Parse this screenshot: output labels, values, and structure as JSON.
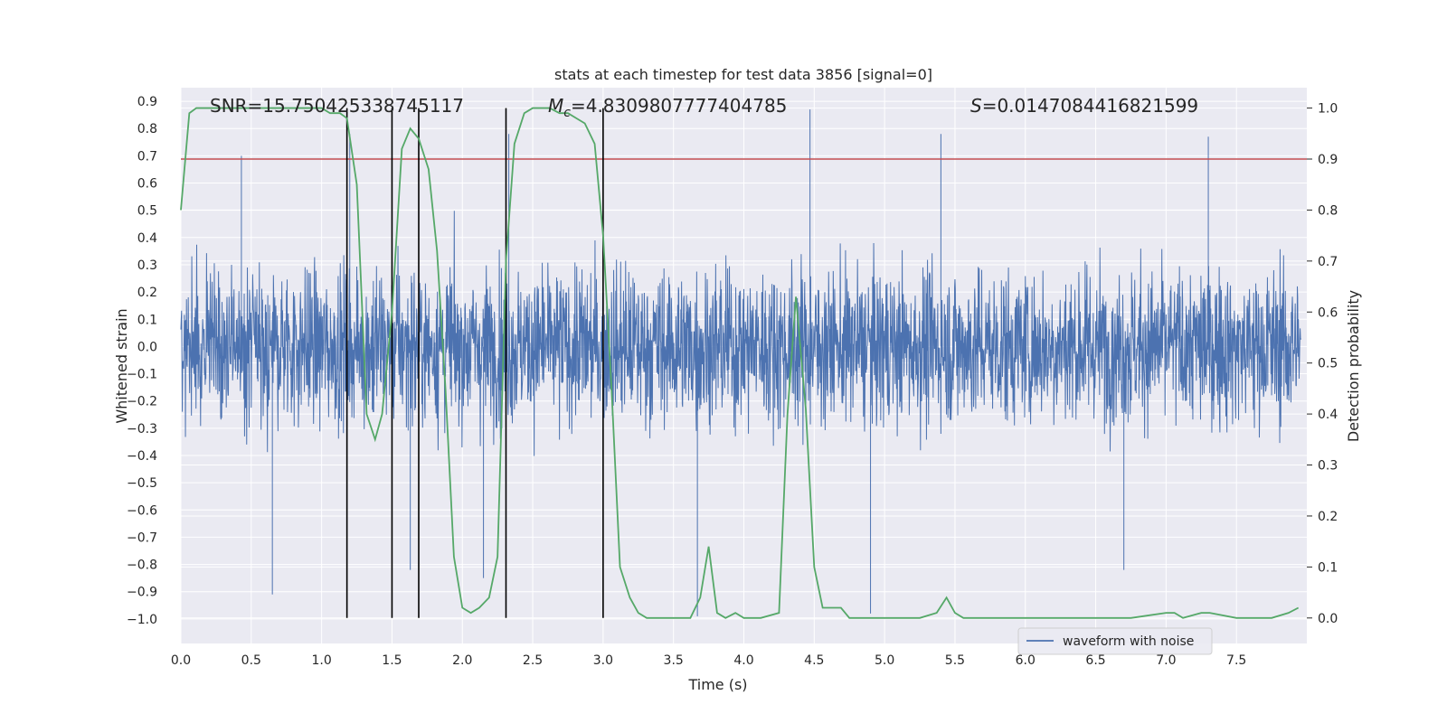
{
  "chart_data": {
    "type": "line",
    "title": "stats at each timestep for test data 3856 [signal=0]",
    "xlabel": "Time (s)",
    "ylabel_left": "Whitened strain",
    "ylabel_right": "Detection probability",
    "xlim": [
      0.0,
      8.0
    ],
    "ylim_left": [
      -1.09,
      0.95
    ],
    "ylim_right": [
      -0.05,
      1.04
    ],
    "x_ticks": [
      "0.0",
      "0.5",
      "1.0",
      "1.5",
      "2.0",
      "2.5",
      "3.0",
      "3.5",
      "4.0",
      "4.5",
      "5.0",
      "5.5",
      "6.0",
      "6.5",
      "7.0",
      "7.5"
    ],
    "y_ticks_left": [
      "0.9",
      "0.8",
      "0.7",
      "0.6",
      "0.5",
      "0.4",
      "0.3",
      "0.2",
      "0.1",
      "0.0",
      "-0.1",
      "-0.2",
      "-0.3",
      "-0.4",
      "-0.5",
      "-0.6",
      "-0.7",
      "-0.8",
      "-0.9",
      "-1.0"
    ],
    "y_ticks_right": [
      "1.0",
      "0.9",
      "0.8",
      "0.7",
      "0.6",
      "0.5",
      "0.4",
      "0.3",
      "0.2",
      "0.1",
      "0.0"
    ],
    "grid": true,
    "annotations": {
      "snr": "SNR=15.750425338745117",
      "mc_symbol": "M",
      "mc_sub": "c",
      "mc_value": "=4.8309807777404785",
      "s_symbol": "S",
      "s_value": "=0.0147084416821599"
    },
    "threshold": {
      "value_right_axis": 0.9,
      "color": "#c44e52"
    },
    "vertical_markers": [
      1.18,
      1.5,
      1.69,
      2.31,
      3.0
    ],
    "series": [
      {
        "name": "waveform with noise",
        "axis": "left",
        "color": "#4c72b0",
        "note": "dense whitened noise, envelope approx ±0.45 with spikes to ~0.87 / -0.99",
        "peaks_max": [
          {
            "x": 0.43,
            "y": 0.7
          },
          {
            "x": 1.2,
            "y": 0.78
          },
          {
            "x": 2.33,
            "y": 0.78
          },
          {
            "x": 4.47,
            "y": 0.87
          },
          {
            "x": 5.4,
            "y": 0.78
          },
          {
            "x": 7.3,
            "y": 0.77
          }
        ],
        "peaks_min": [
          {
            "x": 0.65,
            "y": -0.91
          },
          {
            "x": 1.63,
            "y": -0.82
          },
          {
            "x": 2.15,
            "y": -0.85
          },
          {
            "x": 3.67,
            "y": -0.99
          },
          {
            "x": 4.9,
            "y": -0.98
          },
          {
            "x": 6.7,
            "y": -0.82
          }
        ]
      },
      {
        "name": "detection probability",
        "axis": "right",
        "color": "#55a868",
        "x": [
          0.0,
          0.06,
          0.11,
          0.2,
          0.4,
          0.6,
          0.8,
          1.0,
          1.06,
          1.13,
          1.18,
          1.25,
          1.32,
          1.38,
          1.43,
          1.5,
          1.57,
          1.63,
          1.69,
          1.76,
          1.82,
          1.88,
          1.94,
          2.0,
          2.06,
          2.12,
          2.19,
          2.25,
          2.31,
          2.37,
          2.44,
          2.5,
          2.56,
          2.62,
          2.69,
          2.75,
          2.81,
          2.87,
          2.94,
          3.0,
          3.06,
          3.12,
          3.19,
          3.25,
          3.31,
          3.37,
          3.5,
          3.62,
          3.69,
          3.75,
          3.81,
          3.87,
          3.94,
          4.0,
          4.12,
          4.25,
          4.31,
          4.37,
          4.44,
          4.5,
          4.56,
          4.62,
          4.69,
          4.75,
          4.81,
          5.0,
          5.25,
          5.37,
          5.44,
          5.5,
          5.56,
          5.75,
          6.0,
          6.25,
          6.5,
          6.75,
          7.0,
          7.06,
          7.12,
          7.25,
          7.31,
          7.5,
          7.75,
          7.87,
          7.94
        ],
        "y": [
          0.8,
          0.99,
          1.0,
          1.0,
          1.0,
          1.0,
          1.0,
          1.0,
          0.99,
          0.99,
          0.98,
          0.85,
          0.4,
          0.35,
          0.4,
          0.6,
          0.92,
          0.96,
          0.94,
          0.88,
          0.72,
          0.45,
          0.12,
          0.02,
          0.01,
          0.02,
          0.04,
          0.12,
          0.7,
          0.93,
          0.99,
          1.0,
          1.0,
          1.0,
          0.99,
          0.99,
          0.98,
          0.97,
          0.93,
          0.75,
          0.45,
          0.1,
          0.04,
          0.01,
          0.0,
          0.0,
          0.0,
          0.0,
          0.04,
          0.14,
          0.01,
          0.0,
          0.01,
          0.0,
          0.0,
          0.01,
          0.4,
          0.63,
          0.41,
          0.1,
          0.02,
          0.02,
          0.02,
          0.0,
          0.0,
          0.0,
          0.0,
          0.01,
          0.04,
          0.01,
          0.0,
          0.0,
          0.0,
          0.0,
          0.0,
          0.0,
          0.01,
          0.01,
          0.0,
          0.01,
          0.01,
          0.0,
          0.0,
          0.01,
          0.02
        ]
      }
    ],
    "legend": {
      "position": "bottom-right",
      "entries": [
        "waveform with noise"
      ]
    }
  }
}
